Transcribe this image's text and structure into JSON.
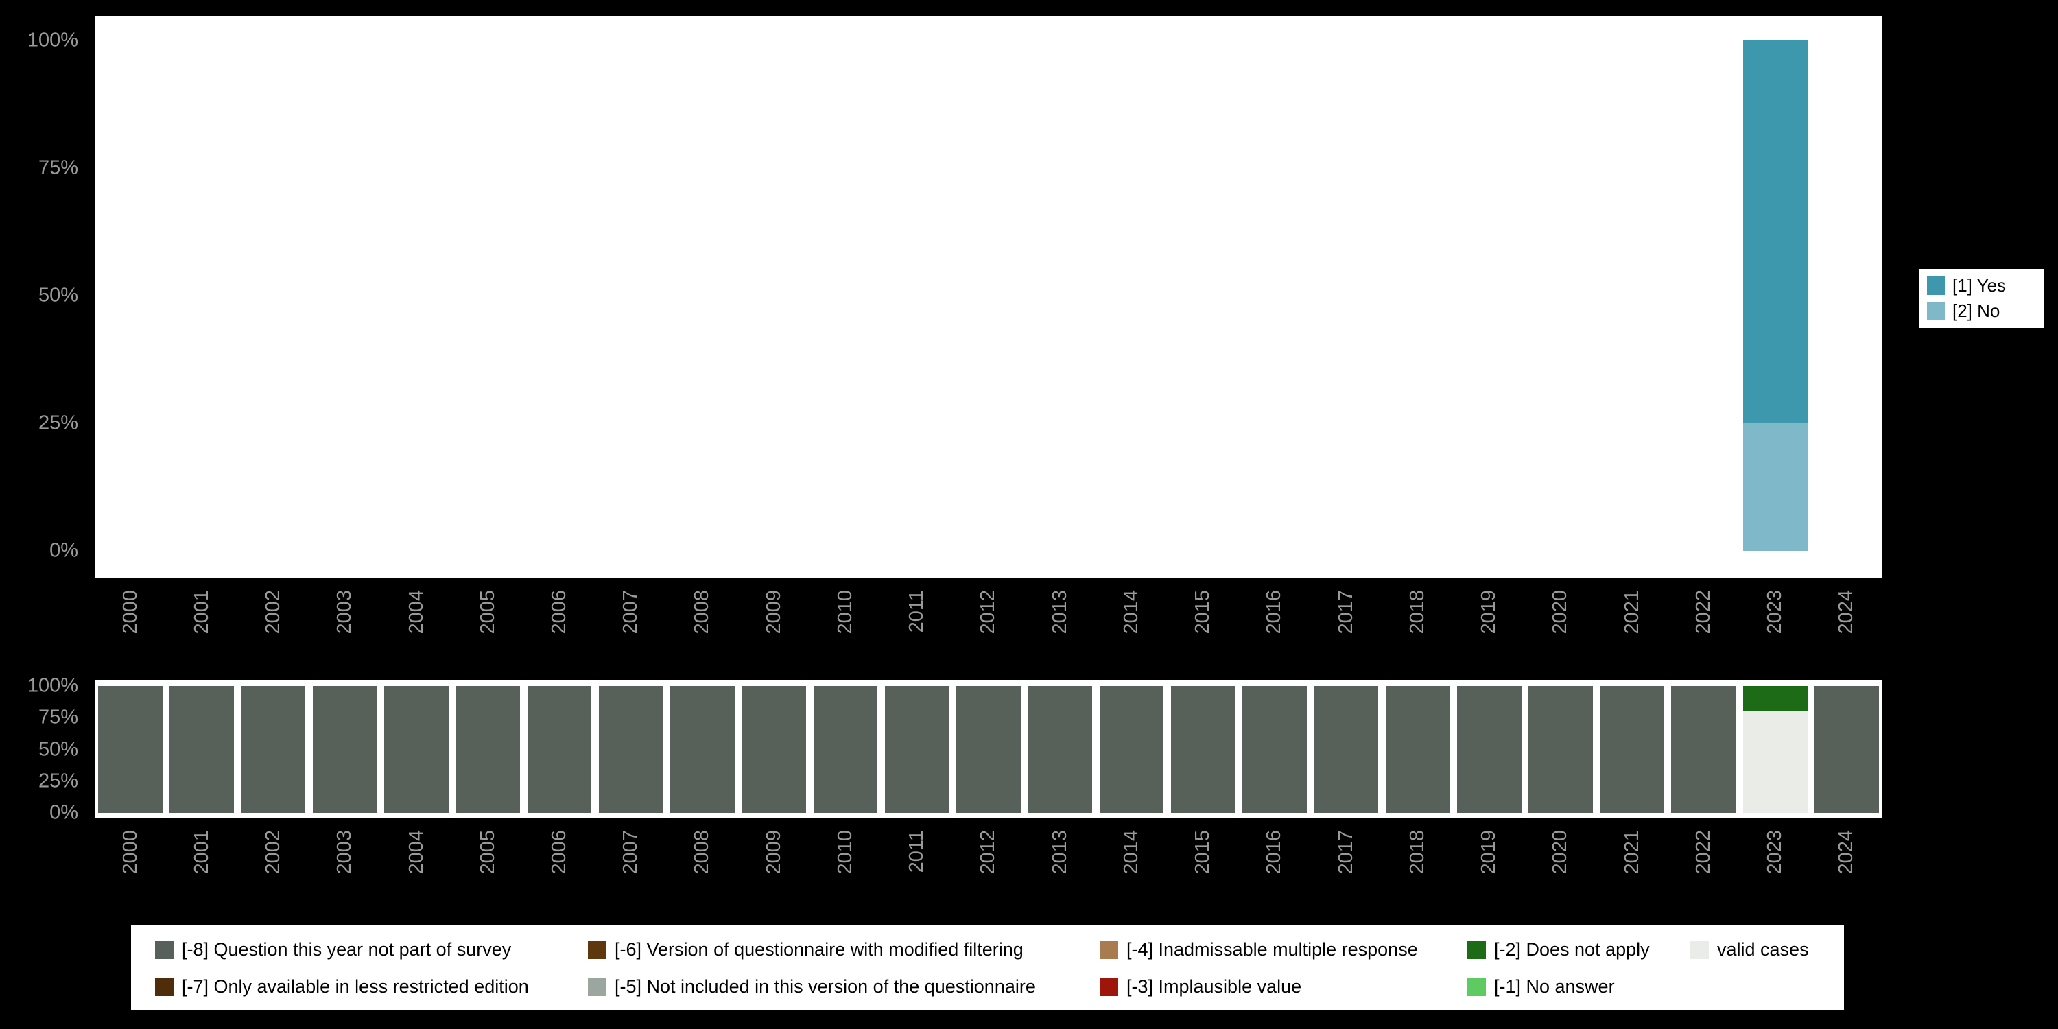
{
  "colors": {
    "background": "#000000",
    "plot_background": "#ffffff",
    "axis_text": "#9a9a9a",
    "legend_text": "#000000"
  },
  "chart_data": [
    {
      "id": "main",
      "type": "bar",
      "stacked": true,
      "title": "",
      "xlabel": "",
      "ylabel": "",
      "ylim": [
        0,
        100
      ],
      "y_ticks": [
        "100%",
        "75%",
        "50%",
        "25%",
        "0%"
      ],
      "grid": false,
      "legend_position": "right",
      "stack_order": "bottom-to-top",
      "categories": [
        "2000",
        "2001",
        "2002",
        "2003",
        "2004",
        "2005",
        "2006",
        "2007",
        "2008",
        "2009",
        "2010",
        "2011",
        "2012",
        "2013",
        "2014",
        "2015",
        "2016",
        "2017",
        "2018",
        "2019",
        "2020",
        "2021",
        "2022",
        "2023",
        "2024"
      ],
      "series": [
        {
          "name": "[2] No",
          "color": "#7fb8c9",
          "values": [
            0,
            0,
            0,
            0,
            0,
            0,
            0,
            0,
            0,
            0,
            0,
            0,
            0,
            0,
            0,
            0,
            0,
            0,
            0,
            0,
            0,
            0,
            0,
            25,
            0
          ]
        },
        {
          "name": "[1] Yes",
          "color": "#3d98ae",
          "values": [
            0,
            0,
            0,
            0,
            0,
            0,
            0,
            0,
            0,
            0,
            0,
            0,
            0,
            0,
            0,
            0,
            0,
            0,
            0,
            0,
            0,
            0,
            0,
            75,
            0
          ]
        }
      ]
    },
    {
      "id": "missing",
      "type": "bar",
      "stacked": true,
      "title": "",
      "xlabel": "",
      "ylabel": "",
      "ylim": [
        0,
        100
      ],
      "y_ticks": [
        "100%",
        "75%",
        "50%",
        "25%",
        "0%"
      ],
      "grid": false,
      "legend_position": "bottom",
      "stack_order": "bottom-to-top",
      "categories": [
        "2000",
        "2001",
        "2002",
        "2003",
        "2004",
        "2005",
        "2006",
        "2007",
        "2008",
        "2009",
        "2010",
        "2011",
        "2012",
        "2013",
        "2014",
        "2015",
        "2016",
        "2017",
        "2018",
        "2019",
        "2020",
        "2021",
        "2022",
        "2023",
        "2024"
      ],
      "series": [
        {
          "name": "valid cases",
          "color": "#e9ece7",
          "values": [
            0,
            0,
            0,
            0,
            0,
            0,
            0,
            0,
            0,
            0,
            0,
            0,
            0,
            0,
            0,
            0,
            0,
            0,
            0,
            0,
            0,
            0,
            0,
            80,
            0
          ]
        },
        {
          "name": "[-2] Does not apply",
          "color": "#1d6b16",
          "values": [
            0,
            0,
            0,
            0,
            0,
            0,
            0,
            0,
            0,
            0,
            0,
            0,
            0,
            0,
            0,
            0,
            0,
            0,
            0,
            0,
            0,
            0,
            0,
            20,
            0
          ]
        },
        {
          "name": "[-8] Question this year not part of survey",
          "color": "#57615a",
          "values": [
            100,
            100,
            100,
            100,
            100,
            100,
            100,
            100,
            100,
            100,
            100,
            100,
            100,
            100,
            100,
            100,
            100,
            100,
            100,
            100,
            100,
            100,
            100,
            0,
            100
          ]
        }
      ]
    }
  ],
  "legend_right": {
    "entries": [
      {
        "label": "[1] Yes",
        "color": "#3d98ae"
      },
      {
        "label": "[2] No",
        "color": "#7fb8c9"
      }
    ]
  },
  "legend_bottom": {
    "columns": [
      [
        {
          "label": "[-8] Question this year not part of survey",
          "color": "#57615a"
        },
        {
          "label": "[-7] Only available in less restricted edition",
          "color": "#4f2d0b"
        }
      ],
      [
        {
          "label": "[-6] Version of questionnaire with modified filtering",
          "color": "#5e370e"
        },
        {
          "label": "[-5] Not included in this version of the questionnaire",
          "color": "#9aa69e"
        }
      ],
      [
        {
          "label": "[-4] Inadmissable multiple response",
          "color": "#a87c50"
        },
        {
          "label": "[-3] Implausible value",
          "color": "#9e150b"
        }
      ],
      [
        {
          "label": "[-2] Does not apply",
          "color": "#1d6b16"
        },
        {
          "label": "[-1] No answer",
          "color": "#5ecb62"
        }
      ],
      [
        {
          "label": "valid cases",
          "color": "#e9ece7"
        }
      ]
    ]
  }
}
